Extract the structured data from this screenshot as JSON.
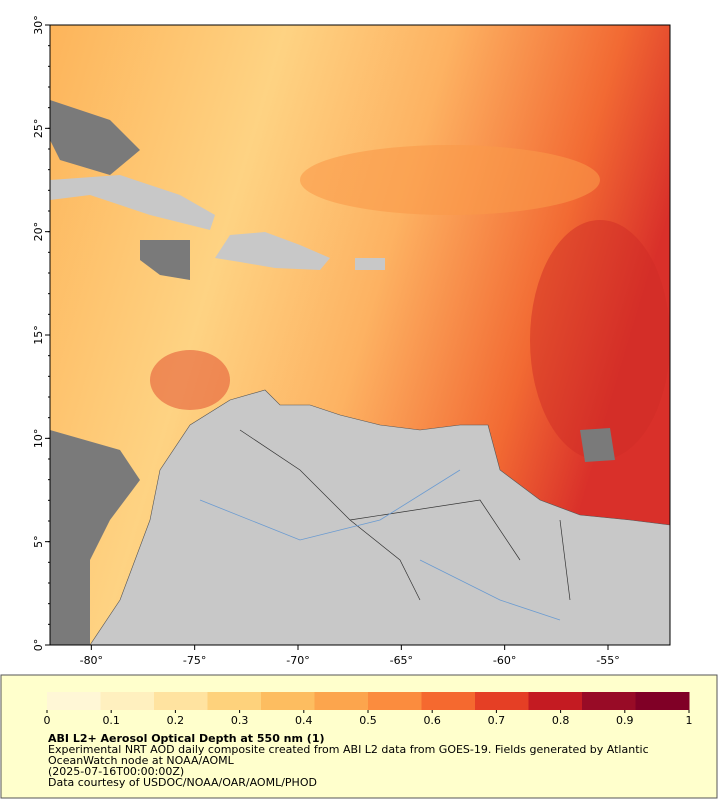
{
  "map": {
    "xlim": [
      -82,
      -52
    ],
    "ylim": [
      0,
      30
    ],
    "xticks": [
      {
        "value": -80,
        "label": "-80°"
      },
      {
        "value": -75,
        "label": "-75°"
      },
      {
        "value": -70,
        "label": "-70°"
      },
      {
        "value": -65,
        "label": "-65°"
      },
      {
        "value": -60,
        "label": "-60°"
      },
      {
        "value": -55,
        "label": "-55°"
      }
    ],
    "yticks": [
      {
        "value": 0,
        "label": "0°"
      },
      {
        "value": 5,
        "label": "5°"
      },
      {
        "value": 10,
        "label": "10°"
      },
      {
        "value": 15,
        "label": "15°"
      },
      {
        "value": 20,
        "label": "20°"
      },
      {
        "value": 25,
        "label": "25°"
      },
      {
        "value": 30,
        "label": "30°"
      }
    ]
  },
  "colorbar": {
    "lim": [
      0,
      1
    ],
    "ticks": [
      0,
      0.1,
      0.2,
      0.3,
      0.4,
      0.5,
      0.6,
      0.7,
      0.8,
      0.9,
      1
    ],
    "colors": [
      "#fff7d6",
      "#fff0bf",
      "#ffe3a0",
      "#fed27c",
      "#fdbd60",
      "#fca54d",
      "#fb8c3e",
      "#f5692f",
      "#e53f25",
      "#c41b22",
      "#980b26",
      "#800026"
    ]
  },
  "caption": {
    "title": "ABI L2+ Aerosol Optical Depth at 550 nm (1)",
    "lines": [
      "Experimental NRT AOD daily composite created from ABI L2 data from GOES-19. Fields generated by Atlantic",
      "OceanWatch node at NOAA/AOML",
      "(2025-07-16T00:00:00Z)",
      "Data courtesy of USDOC/NOAA/OAR/AOML/PHOD"
    ]
  }
}
